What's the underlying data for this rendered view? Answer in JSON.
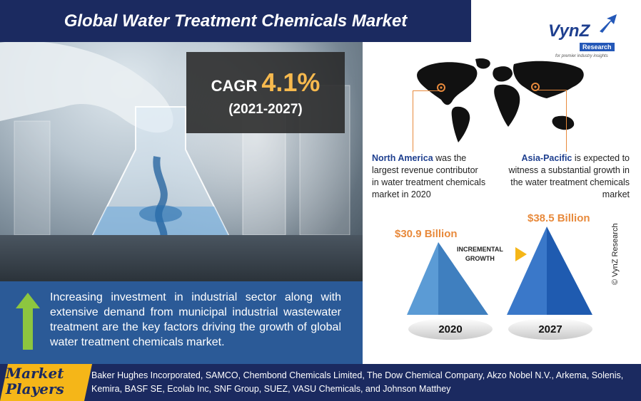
{
  "header": {
    "title": "Global Water Treatment Chemicals Market"
  },
  "logo": {
    "name": "VynZ",
    "sub": "Research",
    "tagline": "for premier industry insights"
  },
  "cagr": {
    "label": "CAGR",
    "value": "4.1%",
    "period": "(2021-2027)"
  },
  "regions": {
    "north_america": {
      "name": "North America",
      "text": " was the largest revenue contributor in water treatment chemicals market in 2020"
    },
    "asia_pacific": {
      "name": "Asia-Pacific",
      "text": " is expected to witness a substantial growth in the water treatment chemicals market"
    }
  },
  "market_size": {
    "start": {
      "year": "2020",
      "value": "$30.9 Billion"
    },
    "end": {
      "year": "2027",
      "value": "$38.5 Billion"
    },
    "growth_label_line1": "INCREMENTAL",
    "growth_label_line2": "GROWTH"
  },
  "drivers": {
    "text": "Increasing investment in industrial sector along with extensive demand from municipal industrial wastewater treatment are the key factors driving the growth of global water treatment chemicals market."
  },
  "market_players": {
    "label_line1": "Market",
    "label_line2": "Players",
    "list": "Baker Hughes Incorporated, SAMCO, Chembond Chemicals Limited, The Dow Chemical Company, Akzo Nobel N.V., Arkema, Solenis, Kemira, BASF SE, Ecolab Inc, SNF Group, SUEZ, VASU Chemicals, and Johnson Matthey"
  },
  "copyright": "© VynZ Research",
  "colors": {
    "navy": "#1b2a60",
    "blue": "#2b5a97",
    "orange": "#e88a3c",
    "gold": "#f6b94e",
    "yellow": "#f5b618"
  }
}
